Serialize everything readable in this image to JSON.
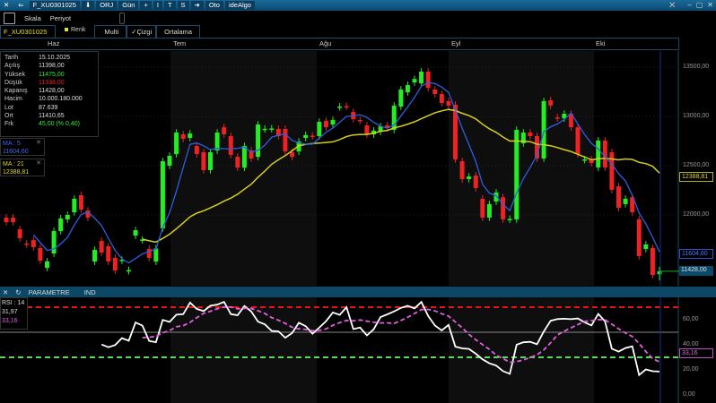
{
  "titlebar": {
    "symbol": "F_XU0301025",
    "buttons": [
      "⬇",
      "ORJ",
      "Gün",
      "+",
      "I",
      "T",
      "S",
      "➜",
      "Oto",
      "ideAlgo"
    ]
  },
  "toolbar": {
    "scale": "Skala",
    "period": "Periyot"
  },
  "tabs": {
    "symbol": "F_XU0301025",
    "color": "Renk",
    "multi": "Multi",
    "line": "✓Çizgi",
    "average": "Ortalama"
  },
  "months": [
    "Haz",
    "Tem",
    "Ağu",
    "Eyl",
    "Eki"
  ],
  "info": [
    [
      "Tarih",
      "15.10.2025"
    ],
    [
      "Açılış",
      "11398,00"
    ],
    [
      "Yüksek",
      "11475,00"
    ],
    [
      "Düşük",
      "11338,00"
    ],
    [
      "Kapanış",
      "11428,00"
    ],
    [
      "Hacim",
      "10.000.180.000"
    ],
    [
      "Lot",
      "87.639"
    ],
    [
      "Ort",
      "11410,65"
    ],
    [
      "Frk",
      "45,00 (% 0,40)"
    ]
  ],
  "ma5": {
    "label": "MA : 5",
    "value": "11604,60"
  },
  "ma21": {
    "label": "MA : 21",
    "value": "12388,81"
  },
  "colors": {
    "up": "#22ee22",
    "down": "#ee2222",
    "ma5": "#2e5fe0",
    "ma21": "#d6d01a",
    "rsi": "#ffffff",
    "rsi_ma": "#e060e0",
    "upper": "#ee1111",
    "lower": "#55dd55"
  },
  "rsi_panel": {
    "close_icon": "close-icon",
    "refresh_icon": "refresh-icon",
    "param": "PARAMETRE",
    "ind": "IND",
    "label": "RSI : 14",
    "value": "31,97",
    "ma_value": "33,16"
  },
  "chart_data": {
    "type": "candlestick",
    "y_ticks": [
      "13500,00",
      "13000,00",
      "12500,00",
      "12000,00"
    ],
    "ylim": [
      11250,
      13650
    ],
    "last_close_tag": "11428,00",
    "candles_open_close": [
      [
        11973,
        11927
      ],
      [
        11973,
        11927
      ],
      [
        11855,
        11764
      ],
      [
        11710,
        11700
      ],
      [
        11745,
        11673
      ],
      [
        11664,
        11536
      ],
      [
        11464,
        11527
      ],
      [
        11609,
        11836
      ],
      [
        11836,
        11964
      ],
      [
        11955,
        12000
      ],
      [
        12027,
        12164
      ],
      [
        12200,
        12055
      ],
      [
        12045,
        11973
      ],
      [
        11527,
        11645
      ],
      [
        11736,
        11618
      ],
      [
        11682,
        11527
      ],
      [
        11564,
        11436
      ],
      [
        11536,
        11545
      ],
      [
        11430,
        11440
      ],
      [
        11790,
        11845
      ],
      [
        11745,
        11750
      ],
      [
        11655,
        11564
      ],
      [
        11527,
        11660
      ],
      [
        11864,
        12545
      ],
      [
        12500,
        12600
      ],
      [
        12618,
        12836
      ],
      [
        12818,
        12773
      ],
      [
        12782,
        12827
      ],
      [
        12700,
        12618
      ],
      [
        12636,
        12455
      ],
      [
        12455,
        12636
      ],
      [
        12655,
        12836
      ],
      [
        12890,
        12818
      ],
      [
        12800,
        12610
      ],
      [
        12590,
        12480
      ],
      [
        12480,
        12700
      ],
      [
        12655,
        12573
      ],
      [
        12590,
        12918
      ],
      [
        12870,
        12875
      ],
      [
        12873,
        12878
      ],
      [
        12873,
        12800
      ],
      [
        12873,
        12645
      ],
      [
        12636,
        12590
      ],
      [
        12645,
        12745
      ],
      [
        12782,
        12810
      ],
      [
        12805,
        12800
      ],
      [
        12800,
        12945
      ],
      [
        12955,
        12890
      ],
      [
        12918,
        12964
      ],
      [
        13095,
        13100
      ],
      [
        13105,
        13100
      ],
      [
        13045,
        12973
      ],
      [
        12964,
        12955
      ],
      [
        12909,
        12818
      ],
      [
        12818,
        12855
      ],
      [
        12845,
        12900
      ],
      [
        12909,
        12882
      ],
      [
        12864,
        13110
      ],
      [
        13100,
        13273
      ],
      [
        13245,
        13318
      ],
      [
        13345,
        13380
      ],
      [
        13336,
        13455
      ],
      [
        13455,
        13290
      ],
      [
        13273,
        13227
      ],
      [
        13227,
        13136
      ],
      [
        13155,
        13110
      ],
      [
        13118,
        12564
      ],
      [
        12545,
        12364
      ],
      [
        12364,
        12390
      ],
      [
        12400,
        12273
      ],
      [
        12164,
        11973
      ],
      [
        11973,
        12110
      ],
      [
        12136,
        12227
      ],
      [
        12180,
        11955
      ],
      [
        11955,
        11960
      ],
      [
        11955,
        12864
      ],
      [
        12727,
        12836
      ],
      [
        12836,
        12800
      ],
      [
        12800,
        12573
      ],
      [
        12573,
        13155
      ],
      [
        13164,
        13110
      ],
      [
        12990,
        12980
      ],
      [
        12980,
        13027
      ],
      [
        13027,
        12890
      ],
      [
        12890,
        12618
      ],
      [
        12560,
        12564
      ],
      [
        12564,
        12527
      ],
      [
        12482,
        12755
      ],
      [
        12755,
        12482
      ],
      [
        12636,
        12255
      ],
      [
        12290,
        12073
      ],
      [
        12110,
        12164
      ],
      [
        12180,
        12027
      ],
      [
        11955,
        11582
      ],
      [
        11655,
        11700
      ],
      [
        11664,
        11390
      ],
      [
        11398,
        11428
      ]
    ],
    "last_candle": {
      "open": 11398,
      "high": 11475,
      "low": 11338,
      "close": 11428
    },
    "ma_periods": [
      5,
      21
    ],
    "rsi": {
      "period": 14,
      "ylim": [
        0,
        80
      ],
      "y_ticks": [
        "60,00",
        "40,00",
        "20,00",
        "0,00"
      ],
      "levels": [
        70,
        50,
        30
      ]
    }
  }
}
